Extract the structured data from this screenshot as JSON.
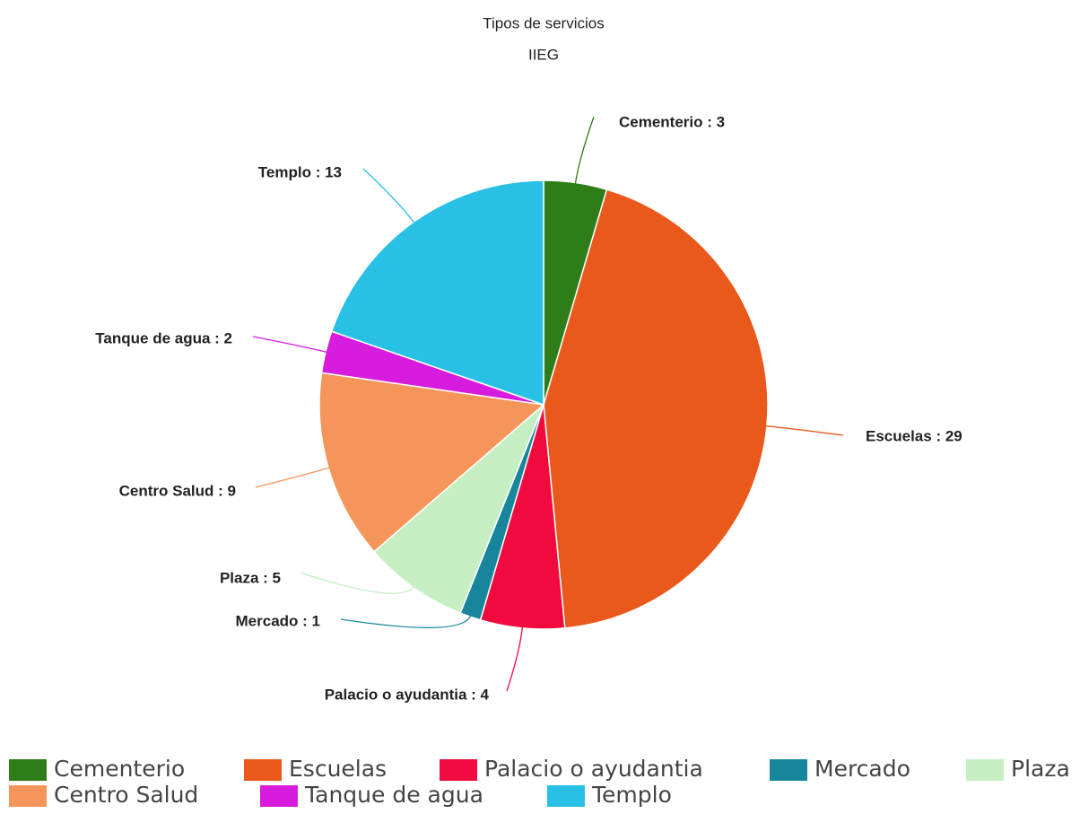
{
  "chart_data": {
    "type": "pie",
    "title": "Tipos de servicios",
    "subtitle": "IIEG",
    "categories": [
      "Cementerio",
      "Escuelas",
      "Palacio o ayudantia",
      "Mercado",
      "Plaza",
      "Centro Salud",
      "Tanque de agua",
      "Templo"
    ],
    "values": [
      3,
      29,
      4,
      1,
      5,
      9,
      2,
      13
    ],
    "value_labels": [
      "Cementerio : 3",
      "Escuelas : 29",
      "Palacio o ayudantia : 4",
      "Mercado : 1",
      "Plaza : 5",
      "Centro Salud : 9",
      "Tanque de agua : 2",
      "Templo : 13"
    ],
    "colors": [
      "#2e7d18",
      "#e8591b",
      "#f00a3e",
      "#17869c",
      "#c5eec2",
      "#f5955a",
      "#d81cde",
      "#28c0e4"
    ],
    "legend": "bottom"
  }
}
